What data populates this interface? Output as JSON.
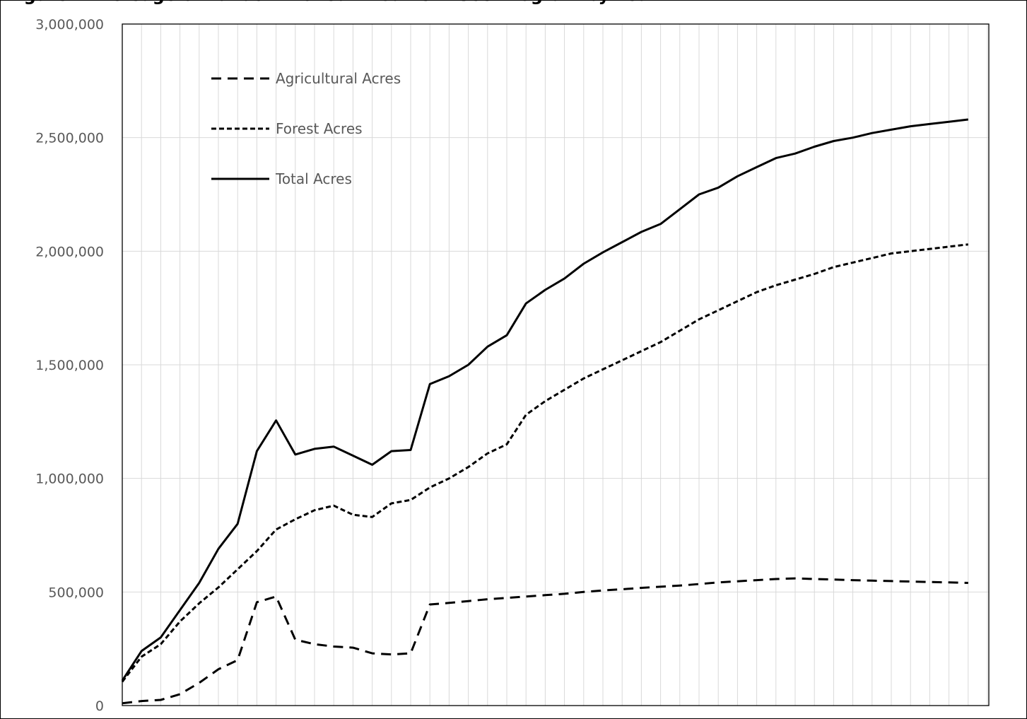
{
  "chart_data": {
    "type": "line",
    "title": "",
    "xlabel": "",
    "ylabel": "",
    "ylim": [
      0,
      3000000
    ],
    "yticks": [
      0,
      500000,
      1000000,
      1500000,
      2000000,
      2500000,
      3000000
    ],
    "ytick_labels": [
      "0",
      "500,000",
      "1,000,000",
      "1,500,000",
      "2,000,000",
      "2,500,000",
      "3,000,000"
    ],
    "grid": true,
    "legend_position": "top-left",
    "x": [
      0,
      1,
      2,
      3,
      4,
      5,
      6,
      7,
      8,
      9,
      10,
      11,
      12,
      13,
      14,
      15,
      16,
      17,
      18,
      19,
      20,
      21,
      22,
      23,
      24,
      25,
      26,
      27,
      28,
      29,
      30,
      31,
      32,
      33,
      34,
      35,
      36,
      37,
      38,
      39,
      40,
      41,
      42,
      43,
      44
    ],
    "series": [
      {
        "name": "Agricultural Acres",
        "style": "long-dash",
        "color": "#000000",
        "values": [
          10000,
          20000,
          25000,
          50000,
          100000,
          160000,
          200000,
          455000,
          480000,
          290000,
          270000,
          260000,
          255000,
          230000,
          225000,
          230000,
          445000,
          452000,
          460000,
          468000,
          474000,
          480000,
          486000,
          492000,
          500000,
          507000,
          512000,
          518000,
          523000,
          528000,
          535000,
          542000,
          547000,
          552000,
          557000,
          560000,
          557000,
          555000,
          552000,
          550000,
          548000,
          546000,
          544000,
          542000,
          540000
        ]
      },
      {
        "name": "Forest Acres",
        "style": "short-dash",
        "color": "#000000",
        "values": [
          105000,
          215000,
          270000,
          370000,
          450000,
          520000,
          600000,
          680000,
          775000,
          820000,
          860000,
          880000,
          840000,
          830000,
          890000,
          905000,
          960000,
          1000000,
          1050000,
          1110000,
          1150000,
          1280000,
          1340000,
          1390000,
          1440000,
          1480000,
          1520000,
          1560000,
          1600000,
          1650000,
          1700000,
          1740000,
          1780000,
          1820000,
          1850000,
          1875000,
          1900000,
          1930000,
          1950000,
          1970000,
          1990000,
          2000000,
          2010000,
          2020000,
          2030000
        ]
      },
      {
        "name": "Total Acres",
        "style": "solid",
        "color": "#000000",
        "values": [
          110000,
          240000,
          300000,
          420000,
          540000,
          690000,
          800000,
          1120000,
          1255000,
          1105000,
          1130000,
          1140000,
          1100000,
          1060000,
          1120000,
          1125000,
          1415000,
          1450000,
          1500000,
          1580000,
          1630000,
          1770000,
          1830000,
          1880000,
          1945000,
          1995000,
          2040000,
          2085000,
          2120000,
          2185000,
          2250000,
          2280000,
          2330000,
          2370000,
          2410000,
          2430000,
          2460000,
          2485000,
          2500000,
          2520000,
          2535000,
          2550000,
          2560000,
          2570000,
          2580000
        ]
      }
    ]
  }
}
